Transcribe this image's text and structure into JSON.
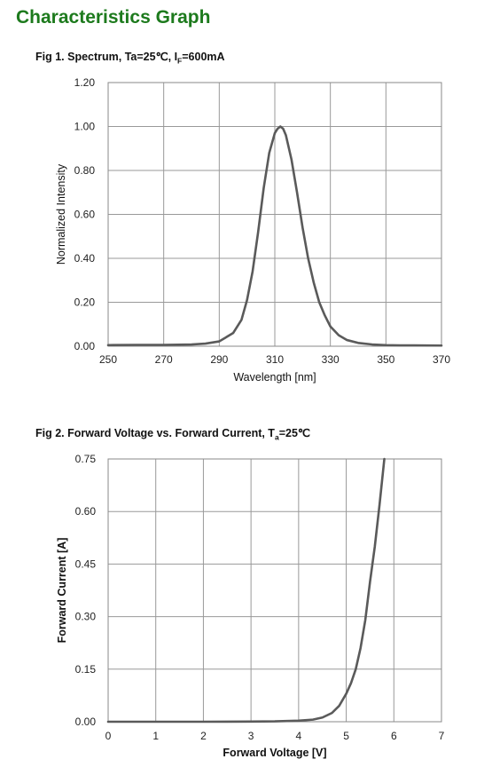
{
  "page_title": "Characteristics Graph",
  "fig1": {
    "title_main": "Fig 1. Spectrum, Ta=25",
    "title_unit": "℃",
    "title_sep": ", I",
    "title_sub": "F",
    "title_tail": "=600mA"
  },
  "fig2": {
    "title_main": "Fig 2. Forward Voltage vs. Forward Current, T",
    "title_sub": "a",
    "title_tail": "=25",
    "title_unit": "℃"
  },
  "colors": {
    "title_green": "#1d7a1d",
    "curve": "#5a5a5a",
    "grid": "#999999"
  },
  "chart_data": [
    {
      "type": "line",
      "xlabel": "Wavelength [nm]",
      "ylabel": "Normalized Intensity",
      "xlim": [
        250,
        370
      ],
      "ylim": [
        0,
        1.2
      ],
      "x_ticks": [
        "250",
        "270",
        "290",
        "310",
        "330",
        "350",
        "370"
      ],
      "y_ticks": [
        "0.00",
        "0.20",
        "0.40",
        "0.60",
        "0.80",
        "1.00",
        "1.20"
      ],
      "grid": true,
      "series": [
        {
          "x": [
            250,
            260,
            270,
            280,
            285,
            290,
            295,
            298,
            300,
            302,
            304,
            306,
            308,
            310,
            311,
            312,
            313,
            314,
            316,
            318,
            320,
            322,
            324,
            326,
            328,
            330,
            333,
            336,
            340,
            345,
            350,
            355,
            360,
            370
          ],
          "y": [
            0.005,
            0.006,
            0.006,
            0.008,
            0.012,
            0.022,
            0.06,
            0.12,
            0.21,
            0.34,
            0.52,
            0.72,
            0.88,
            0.97,
            0.99,
            1.0,
            0.99,
            0.96,
            0.85,
            0.7,
            0.54,
            0.4,
            0.29,
            0.2,
            0.14,
            0.09,
            0.05,
            0.028,
            0.015,
            0.008,
            0.005,
            0.004,
            0.004,
            0.003
          ]
        }
      ]
    },
    {
      "type": "line",
      "xlabel": "Forward Voltage [V]",
      "ylabel": "Forward Current [A]",
      "xlim": [
        0,
        7
      ],
      "ylim": [
        0,
        0.75
      ],
      "x_ticks": [
        "0",
        "1",
        "2",
        "3",
        "4",
        "5",
        "6",
        "7"
      ],
      "y_ticks": [
        "0.00",
        "0.15",
        "0.30",
        "0.45",
        "0.60",
        "0.75"
      ],
      "grid": true,
      "series": [
        {
          "x": [
            0,
            1,
            2,
            3,
            3.5,
            4,
            4.3,
            4.5,
            4.7,
            4.85,
            5.0,
            5.1,
            5.2,
            5.3,
            5.4,
            5.5,
            5.6,
            5.7,
            5.8
          ],
          "y": [
            0,
            0,
            0,
            0.0005,
            0.001,
            0.003,
            0.006,
            0.012,
            0.025,
            0.045,
            0.08,
            0.11,
            0.15,
            0.21,
            0.29,
            0.4,
            0.5,
            0.62,
            0.75
          ]
        }
      ]
    }
  ]
}
